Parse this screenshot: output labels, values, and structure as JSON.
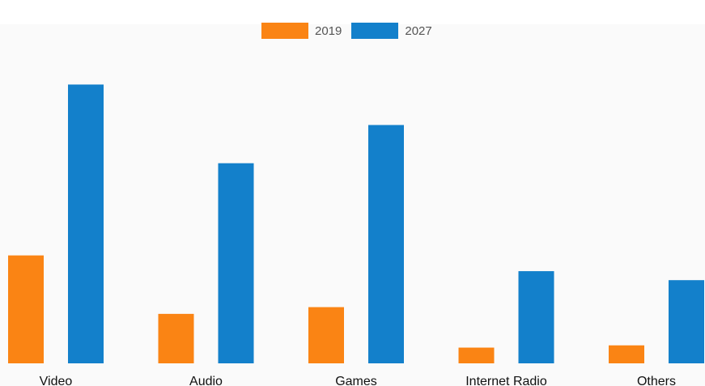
{
  "chart_data": {
    "type": "bar",
    "categories": [
      "Video",
      "Audio",
      "Games",
      "Internet Radio",
      "Others"
    ],
    "series": [
      {
        "name": "2019",
        "color": "#fa8414",
        "values": [
          2.4,
          1.1,
          1.25,
          0.35,
          0.4
        ]
      },
      {
        "name": "2027",
        "color": "#1380cb",
        "values": [
          6.2,
          4.45,
          5.3,
          2.05,
          1.85
        ]
      }
    ],
    "ylim": [
      0,
      7
    ],
    "grid": false,
    "legend_position": "top-center",
    "title": "",
    "xlabel": "",
    "ylabel": ""
  }
}
